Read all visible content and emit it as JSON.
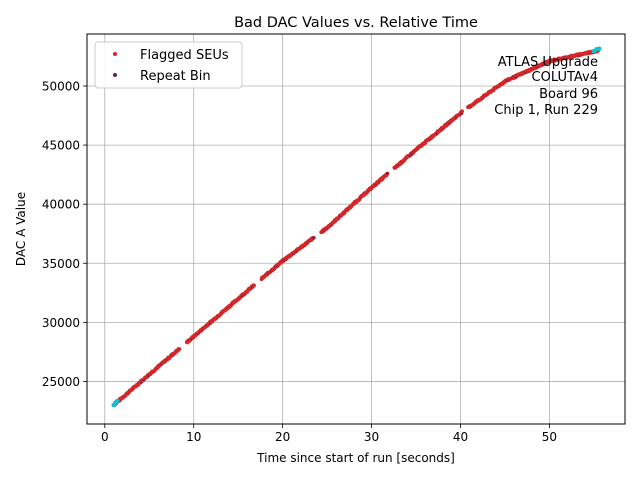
{
  "chart_data": {
    "type": "scatter",
    "title": "Bad DAC Values vs. Relative Time",
    "xlabel": "Time since start of run [seconds]",
    "ylabel": "DAC A Value",
    "xlim": [
      -2.0,
      58.5
    ],
    "ylim": [
      21400,
      54400
    ],
    "xticks": [
      0,
      10,
      20,
      30,
      40,
      50
    ],
    "yticks": [
      25000,
      30000,
      35000,
      40000,
      45000,
      50000
    ],
    "grid": true,
    "legend_position": "upper-left",
    "annotation": [
      "ATLAS Upgrade",
      "COLUTAv4",
      "Board 96",
      "Chip 1, Run 229"
    ],
    "annotation_position": "upper-right",
    "series": [
      {
        "name": "Flagged SEUs",
        "color": "#d62728",
        "trend": [
          [
            1.0,
            23000
          ],
          [
            5.0,
            25600
          ],
          [
            10.0,
            28800
          ],
          [
            15.0,
            32000
          ],
          [
            20.0,
            35200
          ],
          [
            25.0,
            38000
          ],
          [
            30.0,
            41400
          ],
          [
            35.0,
            44600
          ],
          [
            40.0,
            47700
          ],
          [
            45.0,
            50400
          ],
          [
            50.0,
            52100
          ],
          [
            55.5,
            53000
          ]
        ],
        "gaps_x": [
          [
            8.4,
            9.2
          ],
          [
            16.8,
            17.6
          ],
          [
            23.5,
            24.3
          ],
          [
            31.8,
            32.5
          ],
          [
            40.2,
            40.8
          ]
        ]
      },
      {
        "name": "Repeat Bin",
        "color": "#6a1b5e"
      },
      {
        "name": "",
        "color": "#17becf",
        "points": [
          [
            1.0,
            23000
          ],
          [
            1.2,
            23200
          ],
          [
            1.4,
            23350
          ],
          [
            55.0,
            52950
          ],
          [
            55.3,
            53100
          ],
          [
            55.6,
            53150
          ]
        ]
      }
    ]
  }
}
